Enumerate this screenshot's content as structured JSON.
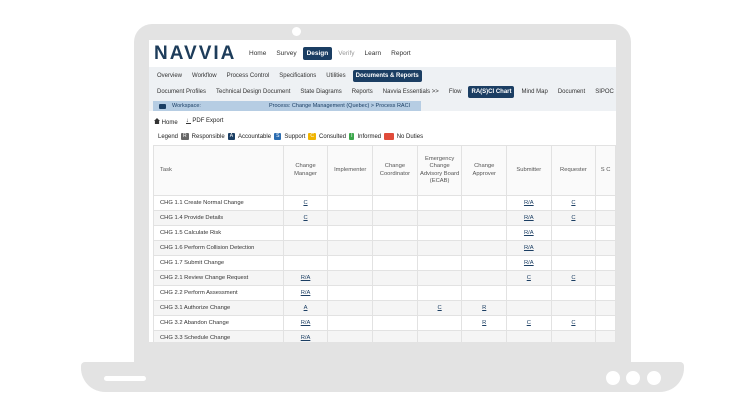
{
  "app": {
    "logo": "NAVVIA"
  },
  "topnav": [
    "Home",
    "Survey",
    "Design",
    "Verify",
    "Learn",
    "Report"
  ],
  "topnav_active": "Design",
  "subnav_row1": [
    "Overview",
    "Workflow",
    "Process Control",
    "Specifications",
    "Utilities",
    "Documents & Reports"
  ],
  "subnav_row1_active": "Documents & Reports",
  "subnav_row2": [
    "Document Profiles",
    "Technical Design Document",
    "State Diagrams",
    "Reports",
    "Navvia Essentials >>",
    "Flow",
    "RA(S)CI Chart",
    "Mind Map",
    "Document",
    "SIPOC"
  ],
  "subnav_row2_active": "RA(S)CI Chart",
  "workspace": {
    "label": "Workspace:",
    "path": "Process: Change Management (Quebec) > Process RACI"
  },
  "toolbar": {
    "home": "Home",
    "pdf": "PDF Export"
  },
  "legend": {
    "title": "Legend",
    "items": [
      {
        "chip": "R",
        "label": "Responsible",
        "color": "#666666"
      },
      {
        "chip": "A",
        "label": "Accountable",
        "color": "#1b3e63"
      },
      {
        "chip": "S",
        "label": "Support",
        "color": "#2b6cb0"
      },
      {
        "chip": "C",
        "label": "Consulted",
        "color": "#f0b400"
      },
      {
        "chip": "I",
        "label": "Informed",
        "color": "#3aa64a"
      },
      {
        "chip": "",
        "label": "No Duties",
        "color": "#e04b3a"
      }
    ]
  },
  "table": {
    "columns": [
      "Task",
      "Change Manager",
      "Implementer",
      "Change Coordinator",
      "Emergency Change Advisory Board (ECAB)",
      "Change Approver",
      "Submitter",
      "Requester",
      "S C"
    ],
    "rows": [
      {
        "task": "CHG 1.1 Create Normal Change",
        "cells": [
          "C",
          "",
          "",
          "",
          "",
          "R/A",
          "C",
          ""
        ]
      },
      {
        "task": "CHG 1.4 Provide Details",
        "cells": [
          "C",
          "",
          "",
          "",
          "",
          "R/A",
          "C",
          ""
        ]
      },
      {
        "task": "CHG 1.5 Calculate Risk",
        "cells": [
          "",
          "",
          "",
          "",
          "",
          "R/A",
          "",
          ""
        ]
      },
      {
        "task": "CHG 1.6 Perform Collision Detection",
        "cells": [
          "",
          "",
          "",
          "",
          "",
          "R/A",
          "",
          ""
        ]
      },
      {
        "task": "CHG 1.7 Submit Change",
        "cells": [
          "",
          "",
          "",
          "",
          "",
          "R/A",
          "",
          ""
        ]
      },
      {
        "task": "CHG 2.1 Review Change Request",
        "cells": [
          "R/A",
          "",
          "",
          "",
          "",
          "C",
          "C",
          ""
        ]
      },
      {
        "task": "CHG 2.2 Perform Assessment",
        "cells": [
          "R/A",
          "",
          "",
          "",
          "",
          "",
          "",
          ""
        ]
      },
      {
        "task": "CHG 3.1 Authorize Change",
        "cells": [
          "A",
          "",
          "",
          "C",
          "R",
          "",
          "",
          ""
        ]
      },
      {
        "task": "CHG 3.2 Abandon Change",
        "cells": [
          "R/A",
          "",
          "",
          "",
          "R",
          "C",
          "C",
          ""
        ]
      },
      {
        "task": "CHG 3.3 Schedule Change",
        "cells": [
          "R/A",
          "",
          "",
          "",
          "",
          "",
          "",
          ""
        ]
      }
    ]
  }
}
